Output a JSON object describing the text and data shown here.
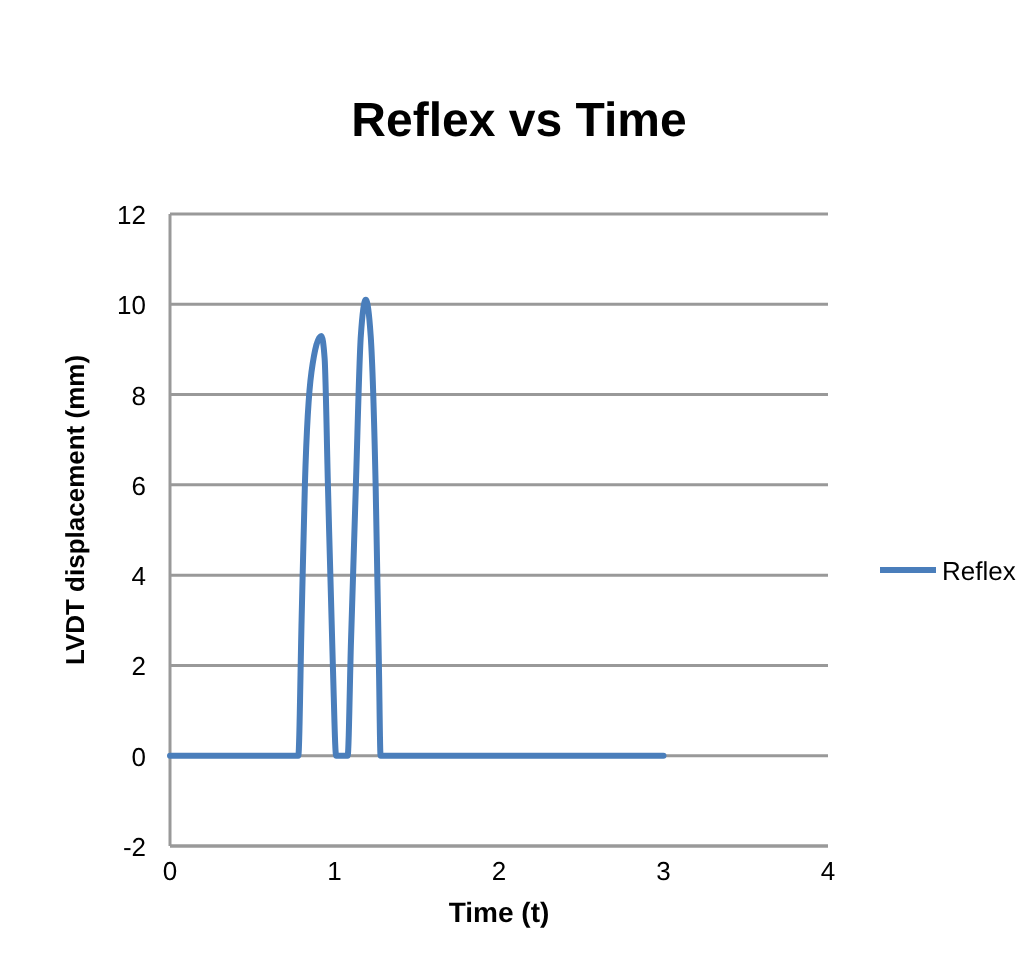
{
  "chart_data": {
    "type": "line",
    "title": "Reflex vs Time",
    "xlabel": "Time (t)",
    "ylabel": "LVDT displacement  (mm)",
    "x": [
      0,
      0.78,
      0.8,
      0.82,
      0.86,
      0.92,
      0.94,
      0.96,
      0.99,
      1.01,
      1.08,
      1.1,
      1.13,
      1.16,
      1.19,
      1.22,
      1.25,
      1.27,
      1.28,
      3
    ],
    "series": [
      {
        "name": "Reflex",
        "color": "#4a7ebb",
        "values": [
          0,
          0,
          3,
          6,
          8.5,
          9.3,
          8.8,
          6,
          2,
          0,
          0,
          2.5,
          6,
          9.3,
          10.1,
          9.3,
          6,
          2,
          0,
          0
        ]
      }
    ],
    "xlim": [
      0,
      4
    ],
    "xticks": [
      0,
      1,
      2,
      3,
      4
    ],
    "ylim": [
      -2,
      12
    ],
    "yticks": [
      -2,
      0,
      2,
      4,
      6,
      8,
      10,
      12
    ],
    "grid": "y",
    "legend": "right",
    "marker": "none",
    "line_style": "solid"
  }
}
